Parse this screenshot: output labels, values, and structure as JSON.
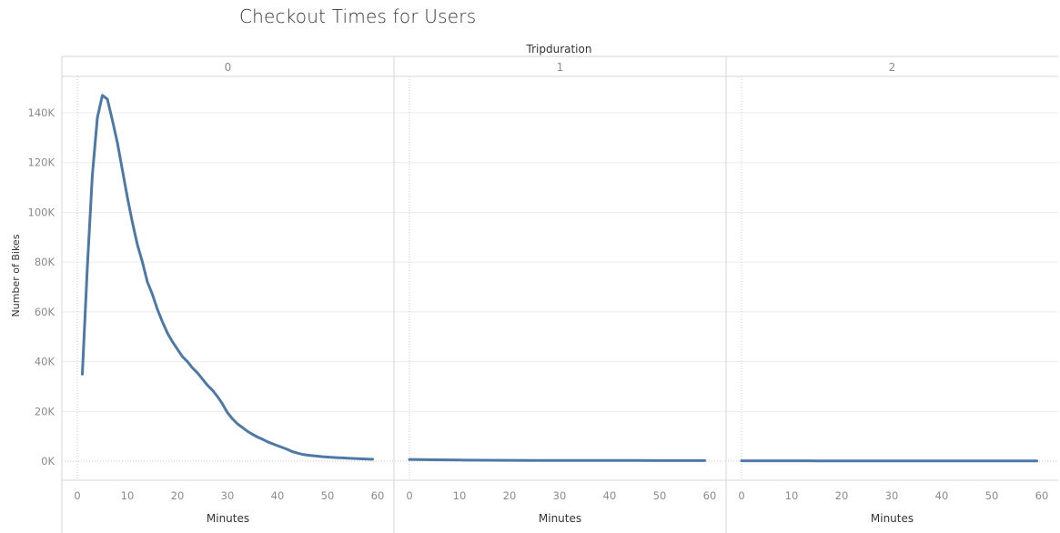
{
  "title": "Checkout Times for Users",
  "chart_data": {
    "type": "line",
    "title": "Checkout Times for Users",
    "column_header": "Tripduration",
    "xlabel": "Minutes",
    "ylabel": "Number of Bikes",
    "xlim": [
      -2,
      62
    ],
    "ylim": [
      -8000,
      152000
    ],
    "x_ticks": [
      0,
      10,
      20,
      30,
      40,
      50,
      60
    ],
    "y_ticks": [
      0,
      20000,
      40000,
      60000,
      80000,
      100000,
      120000,
      140000
    ],
    "y_tick_labels": [
      "0K",
      "20K",
      "40K",
      "60K",
      "80K",
      "100K",
      "120K",
      "140K"
    ],
    "line_color": "#4e79a7",
    "grid": true,
    "panels": [
      {
        "label": "0",
        "x": [
          1,
          2,
          3,
          4,
          5,
          6,
          7,
          8,
          9,
          10,
          11,
          12,
          13,
          14,
          15,
          16,
          17,
          18,
          19,
          20,
          21,
          22,
          23,
          24,
          25,
          26,
          27,
          28,
          29,
          30,
          31,
          32,
          33,
          34,
          35,
          36,
          37,
          38,
          39,
          40,
          41,
          42,
          43,
          44,
          45,
          46,
          47,
          48,
          49,
          50,
          51,
          52,
          53,
          54,
          55,
          56,
          57,
          58,
          59
        ],
        "y": [
          35000,
          78000,
          115000,
          138000,
          147000,
          145500,
          137000,
          128000,
          117000,
          106000,
          96000,
          87000,
          80000,
          72000,
          67000,
          61000,
          56000,
          51500,
          48000,
          45000,
          42000,
          40000,
          37500,
          35500,
          33000,
          30500,
          28500,
          26000,
          23000,
          19500,
          17000,
          15000,
          13500,
          12000,
          10800,
          9700,
          8800,
          7800,
          7000,
          6200,
          5500,
          4700,
          3800,
          3200,
          2700,
          2400,
          2200,
          2000,
          1800,
          1650,
          1500,
          1400,
          1300,
          1200,
          1100,
          1000,
          900,
          800,
          750
        ]
      },
      {
        "label": "1",
        "x": [
          0,
          5,
          10,
          15,
          20,
          25,
          30,
          35,
          40,
          45,
          50,
          55,
          59
        ],
        "y": [
          700,
          550,
          450,
          380,
          330,
          300,
          280,
          260,
          250,
          240,
          230,
          220,
          210
        ]
      },
      {
        "label": "2",
        "x": [
          0,
          5,
          10,
          15,
          20,
          25,
          30,
          35,
          40,
          45,
          50,
          55,
          59
        ],
        "y": [
          150,
          140,
          130,
          125,
          120,
          115,
          110,
          110,
          105,
          105,
          100,
          100,
          100
        ]
      }
    ]
  }
}
